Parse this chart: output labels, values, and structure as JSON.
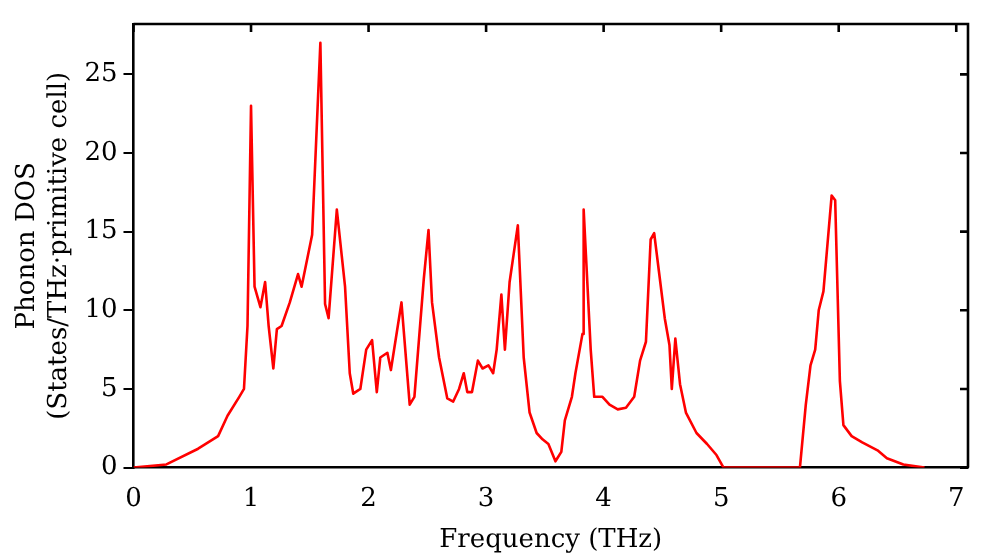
{
  "chart_data": {
    "type": "line",
    "xlabel": "Frequency (THz)",
    "ylabel": "Phonon DOS\n(States/THz·primitive cell)",
    "x": [
      0,
      0.28,
      0.55,
      0.72,
      0.8,
      0.9,
      0.94,
      0.97,
      1.0,
      1.03,
      1.08,
      1.12,
      1.15,
      1.19,
      1.22,
      1.26,
      1.33,
      1.4,
      1.43,
      1.52,
      1.59,
      1.63,
      1.66,
      1.73,
      1.8,
      1.84,
      1.87,
      1.93,
      1.98,
      2.03,
      2.07,
      2.1,
      2.16,
      2.19,
      2.28,
      2.35,
      2.39,
      2.47,
      2.51,
      2.54,
      2.6,
      2.67,
      2.72,
      2.77,
      2.81,
      2.84,
      2.88,
      2.93,
      2.97,
      3.02,
      3.06,
      3.09,
      3.13,
      3.16,
      3.2,
      3.27,
      3.32,
      3.37,
      3.43,
      3.48,
      3.53,
      3.59,
      3.64,
      3.67,
      3.73,
      3.76,
      3.82,
      3.83,
      3.89,
      3.92,
      3.99,
      4.05,
      4.12,
      4.19,
      4.26,
      4.31,
      4.36,
      4.4,
      4.43,
      4.47,
      4.52,
      4.56,
      4.58,
      4.61,
      4.65,
      4.7,
      4.79,
      4.88,
      4.96,
      5.02,
      5.67,
      5.72,
      5.76,
      5.8,
      5.83,
      5.87,
      5.94,
      5.97,
      6.01,
      6.04,
      6.11,
      6.2,
      6.33,
      6.41,
      6.55,
      6.73
    ],
    "series": [
      {
        "color": "#ff0000",
        "values": [
          0,
          0.2,
          1.2,
          2.0,
          3.3,
          4.5,
          5,
          9,
          23,
          11.5,
          10.2,
          11.8,
          9,
          6.3,
          8.8,
          9,
          10.5,
          12.3,
          11.5,
          14.8,
          27,
          10.4,
          9.5,
          16.4,
          11.5,
          6,
          4.7,
          5,
          7.5,
          8.1,
          4.8,
          7,
          7.3,
          6.2,
          10.5,
          4,
          4.5,
          12,
          15.1,
          10.5,
          7,
          4.4,
          4.2,
          5,
          6,
          4.8,
          4.8,
          6.8,
          6.3,
          6.5,
          6,
          7.5,
          11,
          7.5,
          11.8,
          15.4,
          7,
          3.5,
          2.2,
          1.8,
          1.5,
          0.4,
          1,
          3,
          4.5,
          6,
          8.5,
          16.4,
          7.5,
          4.5,
          4.5,
          4,
          3.7,
          3.8,
          4.5,
          6.8,
          8,
          14.5,
          14.9,
          12.5,
          9.5,
          7.8,
          5,
          8.2,
          5.3,
          3.5,
          2.2,
          1.5,
          0.8,
          0,
          0,
          4,
          6.5,
          7.5,
          10,
          11.2,
          17.3,
          17,
          5.5,
          2.7,
          2.0,
          1.6,
          1.1,
          0.6,
          0.2,
          0
        ]
      }
    ],
    "xlim": [
      0,
      7.1
    ],
    "xticks": [
      0,
      1,
      2,
      3,
      4,
      5,
      6,
      7
    ],
    "ylim": [
      0,
      28.2
    ],
    "yticks": [
      0,
      5,
      10,
      15,
      20,
      25
    ],
    "grid": false,
    "legend": false,
    "marker": "none",
    "line_style": "solid"
  }
}
